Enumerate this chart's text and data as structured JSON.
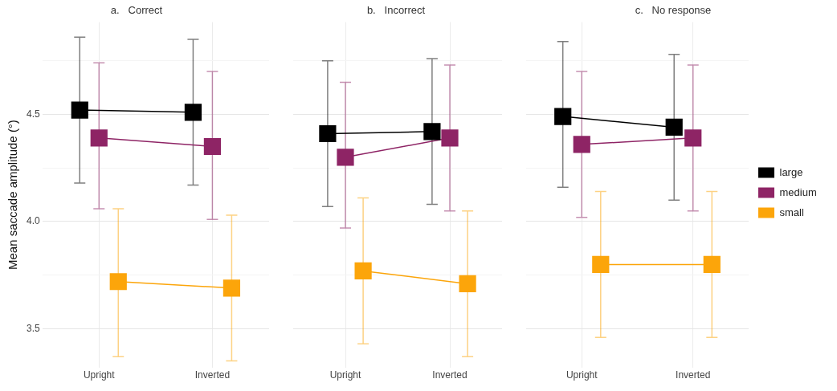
{
  "chart_data": [
    {
      "type": "line",
      "title": "a.   Correct",
      "ylabel": "Mean saccade amplitude (°)",
      "categories": [
        "Upright",
        "Inverted"
      ],
      "ylim": [
        3.32,
        4.93
      ],
      "yticks": [
        3.5,
        {
          "value": 3.75,
          "label": null
        },
        {
          "value": 4,
          "label": "4.0"
        },
        {
          "value": 4.25,
          "label": null
        },
        4.5,
        {
          "value": 4.75,
          "label": null
        }
      ],
      "grid": true,
      "marker": "square",
      "legend": false,
      "series": [
        {
          "color": "#000000",
          "values": [
            4.52,
            4.51
          ],
          "errors": [
            [
              4.18,
              4.86
            ],
            [
              4.17,
              4.85
            ]
          ]
        },
        {
          "color": "#8e2465",
          "values": [
            4.39,
            4.35
          ],
          "errors": [
            [
              4.06,
              4.74
            ],
            [
              4.01,
              4.7
            ]
          ]
        },
        {
          "color": "#fca50a",
          "values": [
            3.72,
            3.69
          ],
          "errors": [
            [
              3.37,
              4.06
            ],
            [
              3.35,
              4.03
            ]
          ]
        }
      ]
    },
    {
      "type": "line",
      "title": "b.   Incorrect",
      "categories": [
        "Upright",
        "Inverted"
      ],
      "ylim": [
        3.32,
        4.93
      ],
      "yticks": [
        3.5,
        {
          "value": 3.75,
          "label": null
        },
        4,
        {
          "value": 4.25,
          "label": null
        },
        4.5,
        {
          "value": 4.75,
          "label": null
        }
      ],
      "grid": true,
      "marker": "square",
      "legend": false,
      "tick_labels": "x",
      "series": [
        {
          "color": "#000000",
          "values": [
            4.41,
            4.42
          ],
          "errors": [
            [
              4.07,
              4.75
            ],
            [
              4.08,
              4.76
            ]
          ]
        },
        {
          "color": "#8e2465",
          "values": [
            4.3,
            4.39
          ],
          "errors": [
            [
              3.97,
              4.65
            ],
            [
              4.05,
              4.73
            ]
          ]
        },
        {
          "color": "#fca50a",
          "values": [
            3.77,
            3.71
          ],
          "errors": [
            [
              3.43,
              4.11
            ],
            [
              3.37,
              4.05
            ]
          ]
        }
      ]
    },
    {
      "type": "line",
      "title": "c.   No response",
      "categories": [
        "Upright",
        "Inverted"
      ],
      "ylim": [
        3.32,
        4.93
      ],
      "yticks": [
        3.5,
        {
          "value": 3.75,
          "label": null
        },
        4,
        {
          "value": 4.25,
          "label": null
        },
        4.5,
        {
          "value": 4.75,
          "label": null
        }
      ],
      "grid": true,
      "marker": "square",
      "legend": "right",
      "tick_labels": "x",
      "series": [
        {
          "name": "large",
          "color": "#000000",
          "values": [
            4.49,
            4.44
          ],
          "errors": [
            [
              4.16,
              4.84
            ],
            [
              4.1,
              4.78
            ]
          ]
        },
        {
          "name": "medium",
          "color": "#8e2465",
          "values": [
            4.36,
            4.39
          ],
          "errors": [
            [
              4.02,
              4.7
            ],
            [
              4.05,
              4.73
            ]
          ]
        },
        {
          "name": "small",
          "color": "#fca50a",
          "values": [
            3.8,
            3.8
          ],
          "errors": [
            [
              3.46,
              4.14
            ],
            [
              3.46,
              4.14
            ]
          ]
        }
      ]
    }
  ]
}
